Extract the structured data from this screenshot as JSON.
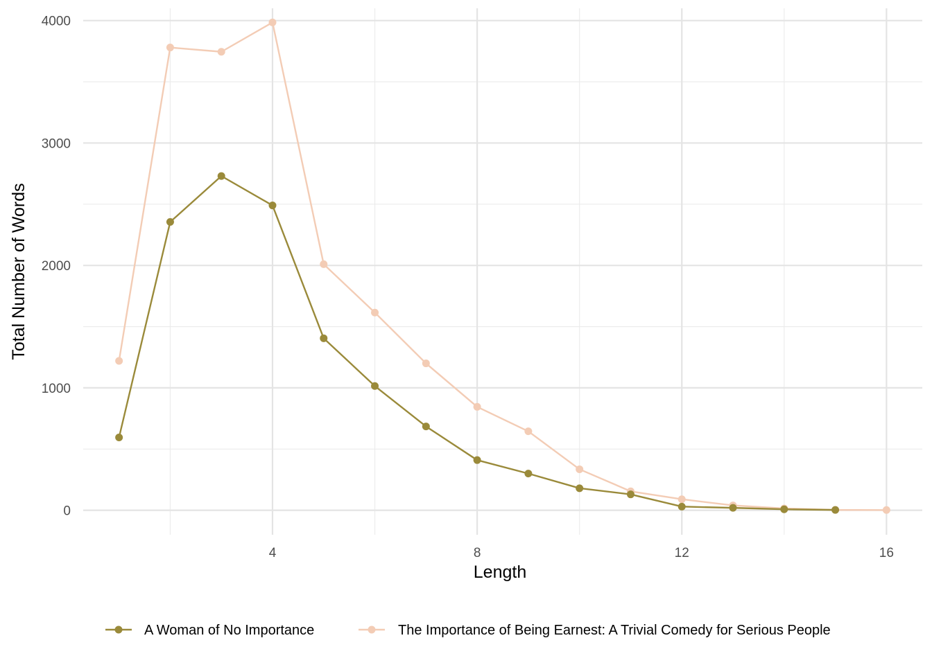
{
  "chart_data": {
    "type": "line",
    "title": "",
    "xlabel": "Length",
    "ylabel": "Total Number of Words",
    "xlim": [
      0.3,
      16.7
    ],
    "ylim": [
      -200,
      4100
    ],
    "x_ticks": [
      4,
      8,
      12,
      16
    ],
    "x_tick_labels": [
      "4",
      "8",
      "12",
      "16"
    ],
    "y_ticks": [
      0,
      1000,
      2000,
      3000,
      4000
    ],
    "y_tick_labels": [
      "0",
      "1000",
      "2000",
      "3000",
      "4000"
    ],
    "grid": true,
    "legend_position": "bottom",
    "series": [
      {
        "name": "A Woman of No Importance",
        "color": "#9a8a3a",
        "x": [
          1,
          2,
          3,
          4,
          5,
          6,
          7,
          8,
          9,
          10,
          11,
          12,
          13,
          14,
          15
        ],
        "y": [
          595,
          2355,
          2730,
          2490,
          1405,
          1015,
          685,
          410,
          300,
          180,
          130,
          30,
          20,
          8,
          3
        ]
      },
      {
        "name": "The Importance of Being Earnest: A Trivial Comedy for Serious People",
        "color": "#f3ccb5",
        "x": [
          1,
          2,
          3,
          4,
          5,
          6,
          7,
          8,
          9,
          10,
          11,
          12,
          13,
          14,
          15,
          16
        ],
        "y": [
          1220,
          3780,
          3745,
          3985,
          2010,
          1615,
          1200,
          845,
          645,
          335,
          155,
          90,
          40,
          15,
          3,
          2
        ]
      }
    ]
  }
}
